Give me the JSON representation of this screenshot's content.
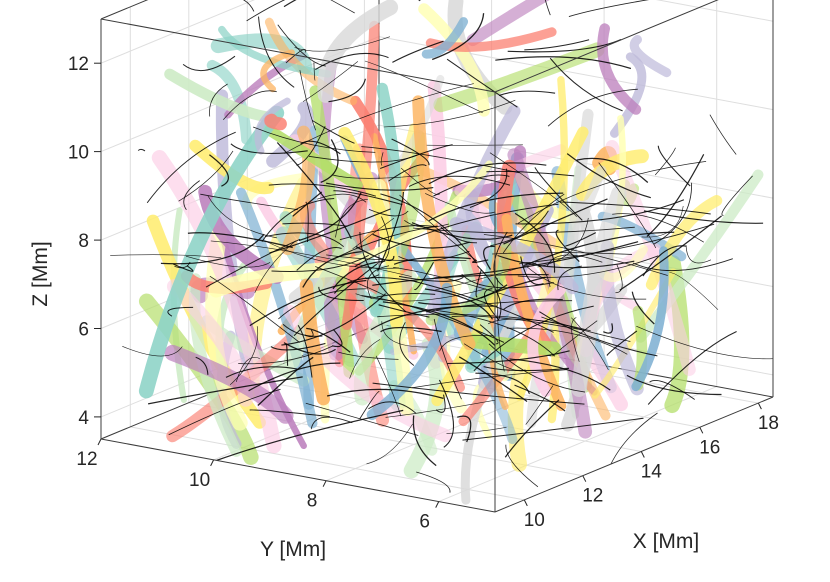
{
  "chart_data": {
    "type": "scatter",
    "subtype": "3d-field-line-bundles",
    "title": "",
    "xlabel": "X [Mm]",
    "ylabel": "Y [Mm]",
    "zlabel": "Z [Mm]",
    "xlim": [
      9,
      18.5
    ],
    "ylim": [
      5,
      12
    ],
    "zlim": [
      3.5,
      13
    ],
    "x_ticks": [
      "10",
      "12",
      "14",
      "16",
      "18"
    ],
    "y_ticks": [
      "12",
      "10",
      "8",
      "6"
    ],
    "z_ticks": [
      "4",
      "6",
      "8",
      "10",
      "12"
    ],
    "grid": true,
    "box": true,
    "palette": [
      "#8dd3c7",
      "#ffffb3",
      "#bebada",
      "#fb8072",
      "#80b1d3",
      "#fdb462",
      "#b3de69",
      "#fccde5",
      "#d9d9d9",
      "#bc80bd",
      "#ccebc5",
      "#ffed6f"
    ],
    "field_line_color": "#000000"
  }
}
